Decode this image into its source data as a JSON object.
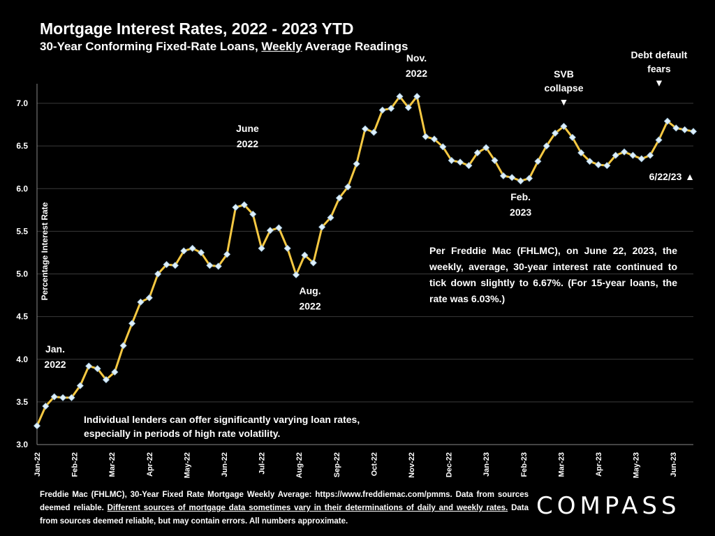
{
  "header": {
    "title": "Mortgage Interest Rates, 2022 - 2023 YTD",
    "subtitle_pre": "30-Year Conforming Fixed-Rate Loans, ",
    "subtitle_underlined": "Weekly",
    "subtitle_post": " Average Readings"
  },
  "notes": {
    "left": "Individual lenders can offer significantly varying loan rates, especially in periods of high rate volatility.",
    "right": "Per Freddie Mac (FHLMC), on June 22, 2023, the weekly, average, 30-year interest rate continued to tick down slightly to 6.67%. (For 15-year loans, the rate was 6.03%.)"
  },
  "footer": {
    "part1": "Freddie Mac (FHLMC), 30-Year Fixed Rate Mortgage Weekly Average:  https://www.freddiemac.com/pmms. Data from sources deemed reliable. ",
    "underlined": "Different sources of mortgage data sometimes vary in their determinations of daily and weekly rates.",
    "part2": " Data from sources deemed reliable, but may contain errors. All numbers approximate."
  },
  "logo": "COMPASS",
  "chart_data": {
    "type": "line",
    "xlabel": "",
    "ylabel": "Percentage Interest  Rate",
    "ylim": [
      3.0,
      7.0
    ],
    "y_ticks": [
      "3.0",
      "3.5",
      "4.0",
      "4.5",
      "5.0",
      "5.5",
      "6.0",
      "6.5",
      "7.0"
    ],
    "x_tick_labels": [
      "Jan-22",
      "Feb-22",
      "Mar-22",
      "Apr-22",
      "May-22",
      "Jun-22",
      "Jul-22",
      "Aug-22",
      "Sep-22",
      "Oct-22",
      "Nov-22",
      "Dec-22",
      "Jan-23",
      "Feb-23",
      "Mar-23",
      "Apr-23",
      "May-23",
      "Jun-23"
    ],
    "grid": true,
    "line_color": "#f5c842",
    "marker_color": "#dff0fb",
    "series": [
      {
        "values": [
          3.22,
          3.45,
          3.56,
          3.55,
          3.55,
          3.69,
          3.92,
          3.89,
          3.76,
          3.85,
          4.16,
          4.42,
          4.67,
          4.72,
          5.0,
          5.11,
          5.1,
          5.27,
          5.3,
          5.25,
          5.1,
          5.09,
          5.23,
          5.78,
          5.81,
          5.7,
          5.3,
          5.51,
          5.54,
          5.3,
          4.99,
          5.22,
          5.13,
          5.55,
          5.66,
          5.89,
          6.02,
          6.29,
          6.7,
          6.66,
          6.92,
          6.94,
          7.08,
          6.95,
          7.08,
          6.61,
          6.58,
          6.49,
          6.33,
          6.31,
          6.27,
          6.42,
          6.48,
          6.33,
          6.15,
          6.13,
          6.09,
          6.12,
          6.32,
          6.5,
          6.65,
          6.73,
          6.6,
          6.42,
          6.32,
          6.28,
          6.27,
          6.39,
          6.43,
          6.39,
          6.35,
          6.39,
          6.57,
          6.79,
          6.71,
          6.69,
          6.67
        ]
      }
    ],
    "annotations": [
      {
        "label_lines": [
          "Jan.",
          "2022"
        ],
        "index": 0,
        "marker": ""
      },
      {
        "label_lines": [
          "June",
          "2022"
        ],
        "index": 23,
        "marker": ""
      },
      {
        "label_lines": [
          "Aug.",
          "2022"
        ],
        "index": 30,
        "marker": ""
      },
      {
        "label_lines": [
          "Nov.",
          "2022"
        ],
        "index": 42,
        "marker": ""
      },
      {
        "label_lines": [
          "Feb.",
          "2023"
        ],
        "index": 56,
        "marker": ""
      },
      {
        "label_lines": [
          "SVB",
          "collapse"
        ],
        "index": 61,
        "marker": "▼"
      },
      {
        "label_lines": [
          "Debt default",
          "fears"
        ],
        "index": 73,
        "marker": "▼"
      },
      {
        "label_lines": [
          "6/22/23"
        ],
        "index": 76,
        "marker": "▲"
      }
    ]
  }
}
